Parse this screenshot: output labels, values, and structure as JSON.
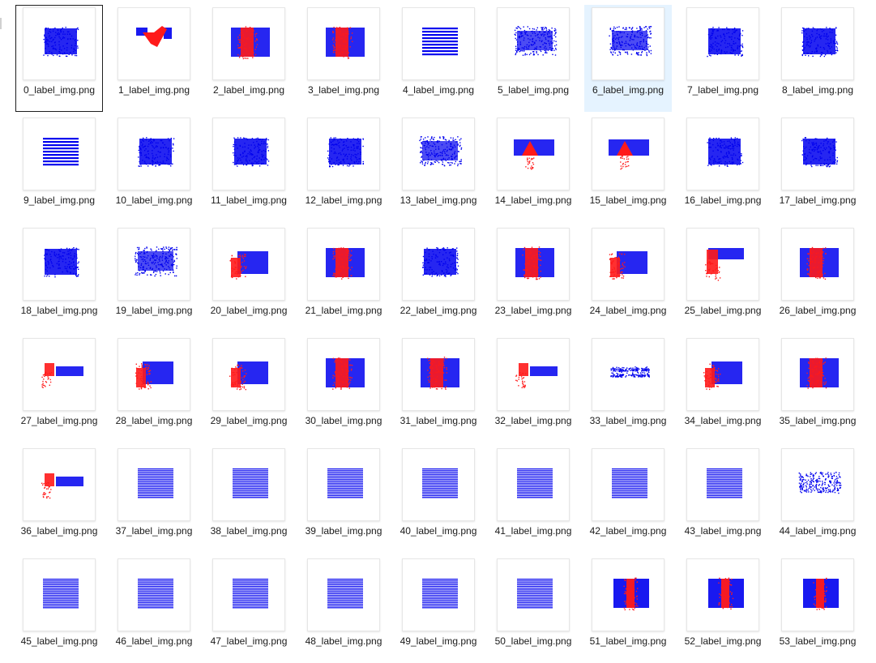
{
  "view": {
    "focused_index": 0,
    "hover_index": 6
  },
  "colors": {
    "blue_label": "#0000ee",
    "red_label": "#ff1a1a",
    "hover_bg": "#e5f3ff",
    "focus_border": "#1f1f1f"
  },
  "files": [
    {
      "name": "0_label_img.png",
      "shape": "rect"
    },
    {
      "name": "1_label_img.png",
      "shape": "v"
    },
    {
      "name": "2_label_img.png",
      "shape": "split"
    },
    {
      "name": "3_label_img.png",
      "shape": "split"
    },
    {
      "name": "4_label_img.png",
      "shape": "striped"
    },
    {
      "name": "5_label_img.png",
      "shape": "noisy"
    },
    {
      "name": "6_label_img.png",
      "shape": "noisy"
    },
    {
      "name": "7_label_img.png",
      "shape": "rect"
    },
    {
      "name": "8_label_img.png",
      "shape": "rect"
    },
    {
      "name": "9_label_img.png",
      "shape": "striped"
    },
    {
      "name": "10_label_img.png",
      "shape": "rect"
    },
    {
      "name": "11_label_img.png",
      "shape": "rect"
    },
    {
      "name": "12_label_img.png",
      "shape": "rect"
    },
    {
      "name": "13_label_img.png",
      "shape": "noisy"
    },
    {
      "name": "14_label_img.png",
      "shape": "triangle"
    },
    {
      "name": "15_label_img.png",
      "shape": "triangle"
    },
    {
      "name": "16_label_img.png",
      "shape": "rect"
    },
    {
      "name": "17_label_img.png",
      "shape": "rect"
    },
    {
      "name": "18_label_img.png",
      "shape": "rect"
    },
    {
      "name": "19_label_img.png",
      "shape": "noisy"
    },
    {
      "name": "20_label_img.png",
      "shape": "left-red"
    },
    {
      "name": "21_label_img.png",
      "shape": "split"
    },
    {
      "name": "22_label_img.png",
      "shape": "rect"
    },
    {
      "name": "23_label_img.png",
      "shape": "split"
    },
    {
      "name": "24_label_img.png",
      "shape": "left-red"
    },
    {
      "name": "25_label_img.png",
      "shape": "l-shape"
    },
    {
      "name": "26_label_img.png",
      "shape": "split"
    },
    {
      "name": "27_label_img.png",
      "shape": "step"
    },
    {
      "name": "28_label_img.png",
      "shape": "left-red"
    },
    {
      "name": "29_label_img.png",
      "shape": "left-red"
    },
    {
      "name": "30_label_img.png",
      "shape": "split"
    },
    {
      "name": "31_label_img.png",
      "shape": "split"
    },
    {
      "name": "32_label_img.png",
      "shape": "step"
    },
    {
      "name": "33_label_img.png",
      "shape": "wave"
    },
    {
      "name": "34_label_img.png",
      "shape": "left-red"
    },
    {
      "name": "35_label_img.png",
      "shape": "split"
    },
    {
      "name": "36_label_img.png",
      "shape": "step"
    },
    {
      "name": "37_label_img.png",
      "shape": "lines"
    },
    {
      "name": "38_label_img.png",
      "shape": "lines"
    },
    {
      "name": "39_label_img.png",
      "shape": "lines"
    },
    {
      "name": "40_label_img.png",
      "shape": "lines"
    },
    {
      "name": "41_label_img.png",
      "shape": "lines"
    },
    {
      "name": "42_label_img.png",
      "shape": "lines"
    },
    {
      "name": "43_label_img.png",
      "shape": "lines"
    },
    {
      "name": "44_label_img.png",
      "shape": "curve"
    },
    {
      "name": "45_label_img.png",
      "shape": "lines"
    },
    {
      "name": "46_label_img.png",
      "shape": "lines"
    },
    {
      "name": "47_label_img.png",
      "shape": "lines"
    },
    {
      "name": "48_label_img.png",
      "shape": "lines"
    },
    {
      "name": "49_label_img.png",
      "shape": "lines"
    },
    {
      "name": "50_label_img.png",
      "shape": "lines"
    },
    {
      "name": "51_label_img.png",
      "shape": "center-red"
    },
    {
      "name": "52_label_img.png",
      "shape": "center-red"
    },
    {
      "name": "53_label_img.png",
      "shape": "center-red"
    }
  ]
}
